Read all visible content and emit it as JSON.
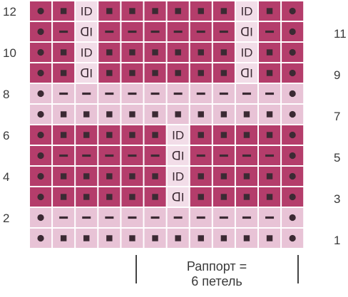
{
  "colors": {
    "dark": "#b43d6b",
    "light": "#e8c3d6",
    "grid": "#ffffff",
    "symbol": "#3b2a33",
    "cross_bg": "#f2dde8"
  },
  "row_labels": {
    "left": [
      "12",
      "10",
      "8",
      "6",
      "4",
      "2"
    ],
    "right": [
      "11",
      "9",
      "7",
      "5",
      "3",
      "1"
    ]
  },
  "legend": {
    "line1": "Раппорт =",
    "line2": "6 петель"
  },
  "grid": {
    "columns": 12,
    "rows_top_to_bottom": [
      {
        "row": 12,
        "band": "dark",
        "cells": [
          "dot",
          "sq",
          "ID",
          "sq",
          "sq",
          "sq",
          "sq",
          "sq",
          "sq",
          "ID",
          "sq",
          "dot"
        ]
      },
      {
        "row": 11,
        "band": "dark",
        "cells": [
          "dot",
          "dash",
          "CI",
          "dash",
          "dash",
          "dash",
          "dash",
          "dash",
          "dash",
          "CI",
          "dash",
          "dot"
        ]
      },
      {
        "row": 10,
        "band": "dark",
        "cells": [
          "dot",
          "sq",
          "ID",
          "sq",
          "sq",
          "sq",
          "sq",
          "sq",
          "sq",
          "ID",
          "sq",
          "dot"
        ]
      },
      {
        "row": 9,
        "band": "dark",
        "cells": [
          "dot",
          "sq",
          "CI",
          "sq",
          "sq",
          "sq",
          "sq",
          "sq",
          "sq",
          "CI",
          "sq",
          "dot"
        ]
      },
      {
        "row": 8,
        "band": "light",
        "cells": [
          "dot",
          "dash",
          "dash",
          "dash",
          "dash",
          "dash",
          "dash",
          "dash",
          "dash",
          "dash",
          "dash",
          "dot"
        ]
      },
      {
        "row": 7,
        "band": "light",
        "cells": [
          "dot",
          "sq",
          "sq",
          "sq",
          "sq",
          "sq",
          "sq",
          "sq",
          "sq",
          "sq",
          "sq",
          "dot"
        ]
      },
      {
        "row": 6,
        "band": "dark",
        "cells": [
          "dot",
          "sq",
          "sq",
          "sq",
          "sq",
          "sq",
          "ID",
          "sq",
          "sq",
          "sq",
          "sq",
          "dot"
        ]
      },
      {
        "row": 5,
        "band": "dark",
        "cells": [
          "dot",
          "dash",
          "dash",
          "dash",
          "dash",
          "dash",
          "CI",
          "dash",
          "dash",
          "dash",
          "dash",
          "dot"
        ]
      },
      {
        "row": 4,
        "band": "dark",
        "cells": [
          "dot",
          "sq",
          "sq",
          "sq",
          "sq",
          "sq",
          "ID",
          "sq",
          "sq",
          "sq",
          "sq",
          "dot"
        ]
      },
      {
        "row": 3,
        "band": "dark",
        "cells": [
          "dot",
          "sq",
          "sq",
          "sq",
          "sq",
          "sq",
          "CI",
          "sq",
          "sq",
          "sq",
          "sq",
          "dot"
        ]
      },
      {
        "row": 2,
        "band": "light",
        "cells": [
          "dot",
          "dash",
          "dash",
          "dash",
          "dash",
          "dash",
          "dash",
          "dash",
          "dash",
          "dash",
          "dash",
          "dot"
        ]
      },
      {
        "row": 1,
        "band": "light",
        "cells": [
          "dot",
          "sq",
          "sq",
          "sq",
          "sq",
          "sq",
          "sq",
          "sq",
          "sq",
          "sq",
          "sq",
          "dot"
        ]
      }
    ]
  },
  "glyphs": {
    "ID": "ID",
    "CI": "ᗡI"
  }
}
